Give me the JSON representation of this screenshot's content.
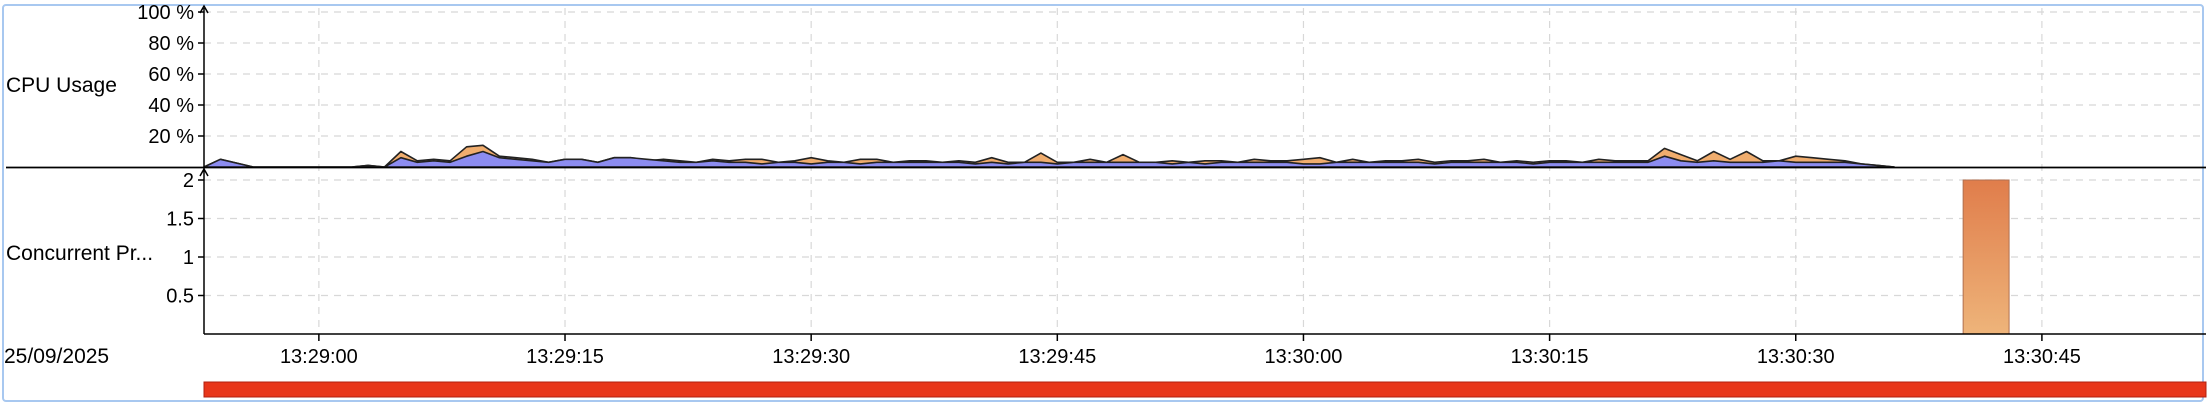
{
  "colors": {
    "panel_border": "#a8c8f0",
    "series_1": "#8c8cf0",
    "series_2": "#f0ad6e",
    "bar_top": "#e07d4b",
    "bar_bottom": "#eeb47a",
    "progress": "#e8361a",
    "grid": "#d8d8d8"
  },
  "chart_data": [
    {
      "type": "area",
      "stacked": true,
      "ylabel": "CPU Usage",
      "ylim": [
        0,
        100
      ],
      "y_ticks": [
        "20 %",
        "40 %",
        "60 %",
        "80 %",
        "100 %"
      ],
      "y_tick_values": [
        20,
        40,
        60,
        80,
        100
      ],
      "grid": true,
      "x_unit": "seconds after 13:28:53",
      "series": [
        {
          "values": [
            [
              0,
              0
            ],
            [
              1,
              5
            ],
            [
              3,
              0
            ],
            [
              9,
              0
            ],
            [
              10,
              1
            ],
            [
              11,
              0
            ],
            [
              12,
              6
            ],
            [
              13,
              3
            ],
            [
              14,
              4
            ],
            [
              15,
              3
            ],
            [
              16,
              7
            ],
            [
              17,
              10
            ],
            [
              18,
              6
            ],
            [
              19,
              5
            ],
            [
              20,
              4
            ],
            [
              21,
              3
            ],
            [
              22,
              5
            ],
            [
              23,
              5
            ],
            [
              24,
              3
            ],
            [
              25,
              6
            ],
            [
              26,
              6
            ],
            [
              27,
              5
            ],
            [
              28,
              4
            ],
            [
              29,
              3
            ],
            [
              30,
              3
            ],
            [
              31,
              4
            ],
            [
              32,
              3
            ],
            [
              33,
              3
            ],
            [
              34,
              2
            ],
            [
              35,
              3
            ],
            [
              36,
              3
            ],
            [
              37,
              2
            ],
            [
              38,
              3
            ],
            [
              39,
              3
            ],
            [
              40,
              2
            ],
            [
              41,
              3
            ],
            [
              42,
              3
            ],
            [
              43,
              3
            ],
            [
              44,
              3
            ],
            [
              45,
              3
            ],
            [
              46,
              3
            ],
            [
              47,
              2
            ],
            [
              48,
              3
            ],
            [
              49,
              2
            ],
            [
              50,
              3
            ],
            [
              51,
              3
            ],
            [
              52,
              2
            ],
            [
              53,
              3
            ],
            [
              54,
              3
            ],
            [
              55,
              3
            ],
            [
              56,
              3
            ],
            [
              57,
              3
            ],
            [
              58,
              3
            ],
            [
              59,
              2
            ],
            [
              60,
              3
            ],
            [
              61,
              2
            ],
            [
              62,
              3
            ],
            [
              63,
              3
            ],
            [
              64,
              3
            ],
            [
              65,
              3
            ],
            [
              66,
              3
            ],
            [
              67,
              2
            ],
            [
              68,
              2
            ],
            [
              69,
              3
            ],
            [
              70,
              3
            ],
            [
              71,
              3
            ],
            [
              72,
              3
            ],
            [
              73,
              3
            ],
            [
              74,
              3
            ],
            [
              75,
              2
            ],
            [
              76,
              3
            ],
            [
              77,
              3
            ],
            [
              78,
              3
            ],
            [
              79,
              3
            ],
            [
              80,
              3
            ],
            [
              81,
              2
            ],
            [
              82,
              3
            ],
            [
              83,
              3
            ],
            [
              84,
              3
            ],
            [
              85,
              3
            ],
            [
              86,
              3
            ],
            [
              87,
              3
            ],
            [
              88,
              3
            ],
            [
              89,
              7
            ],
            [
              90,
              4
            ],
            [
              91,
              3
            ],
            [
              92,
              4
            ],
            [
              93,
              3
            ],
            [
              94,
              3
            ],
            [
              95,
              3
            ],
            [
              96,
              4
            ],
            [
              97,
              3
            ],
            [
              98,
              3
            ],
            [
              99,
              3
            ],
            [
              100,
              3
            ],
            [
              101,
              2
            ],
            [
              102,
              1
            ],
            [
              103,
              0
            ]
          ]
        },
        {
          "values": [
            [
              0,
              0
            ],
            [
              1,
              5
            ],
            [
              3,
              0
            ],
            [
              9,
              0
            ],
            [
              10,
              1
            ],
            [
              11,
              0
            ],
            [
              12,
              10
            ],
            [
              13,
              4
            ],
            [
              14,
              5
            ],
            [
              15,
              4
            ],
            [
              16,
              13
            ],
            [
              17,
              14
            ],
            [
              18,
              7
            ],
            [
              19,
              6
            ],
            [
              20,
              5
            ],
            [
              21,
              3
            ],
            [
              22,
              5
            ],
            [
              23,
              5
            ],
            [
              24,
              3
            ],
            [
              25,
              6
            ],
            [
              26,
              6
            ],
            [
              27,
              4
            ],
            [
              28,
              5
            ],
            [
              29,
              4
            ],
            [
              30,
              3
            ],
            [
              31,
              5
            ],
            [
              32,
              4
            ],
            [
              33,
              5
            ],
            [
              34,
              5
            ],
            [
              35,
              3
            ],
            [
              36,
              4
            ],
            [
              37,
              6
            ],
            [
              38,
              4
            ],
            [
              39,
              3
            ],
            [
              40,
              5
            ],
            [
              41,
              5
            ],
            [
              42,
              3
            ],
            [
              43,
              4
            ],
            [
              44,
              4
            ],
            [
              45,
              3
            ],
            [
              46,
              4
            ],
            [
              47,
              3
            ],
            [
              48,
              6
            ],
            [
              49,
              3
            ],
            [
              50,
              3
            ],
            [
              51,
              9
            ],
            [
              52,
              3
            ],
            [
              53,
              3
            ],
            [
              54,
              5
            ],
            [
              55,
              3
            ],
            [
              56,
              8
            ],
            [
              57,
              3
            ],
            [
              58,
              3
            ],
            [
              59,
              4
            ],
            [
              60,
              3
            ],
            [
              61,
              4
            ],
            [
              62,
              4
            ],
            [
              63,
              3
            ],
            [
              64,
              5
            ],
            [
              65,
              4
            ],
            [
              66,
              4
            ],
            [
              67,
              5
            ],
            [
              68,
              6
            ],
            [
              69,
              3
            ],
            [
              70,
              5
            ],
            [
              71,
              3
            ],
            [
              72,
              4
            ],
            [
              73,
              4
            ],
            [
              74,
              5
            ],
            [
              75,
              3
            ],
            [
              76,
              4
            ],
            [
              77,
              4
            ],
            [
              78,
              5
            ],
            [
              79,
              3
            ],
            [
              80,
              4
            ],
            [
              81,
              3
            ],
            [
              82,
              4
            ],
            [
              83,
              4
            ],
            [
              84,
              3
            ],
            [
              85,
              5
            ],
            [
              86,
              4
            ],
            [
              87,
              4
            ],
            [
              88,
              4
            ],
            [
              89,
              12
            ],
            [
              90,
              8
            ],
            [
              91,
              4
            ],
            [
              92,
              10
            ],
            [
              93,
              5
            ],
            [
              94,
              10
            ],
            [
              95,
              4
            ],
            [
              96,
              4
            ],
            [
              97,
              7
            ],
            [
              98,
              6
            ],
            [
              99,
              5
            ],
            [
              100,
              4
            ],
            [
              101,
              2
            ],
            [
              102,
              1
            ],
            [
              103,
              0
            ]
          ]
        }
      ]
    },
    {
      "type": "bar",
      "ylabel": "Concurrent Pr...",
      "ylim": [
        0,
        2
      ],
      "y_ticks": [
        "0.5",
        "1",
        "1.5",
        "2"
      ],
      "y_tick_values": [
        0.5,
        1,
        1.5,
        2
      ],
      "grid": true,
      "bars": [
        {
          "x_start": 107.2,
          "x_end": 110,
          "value": 2
        }
      ]
    }
  ],
  "x_axis": {
    "date_label": "25/09/2025",
    "ticks": [
      {
        "label": "13:29:00",
        "value": 7
      },
      {
        "label": "13:29:15",
        "value": 22
      },
      {
        "label": "13:29:30",
        "value": 37
      },
      {
        "label": "13:29:45",
        "value": 52
      },
      {
        "label": "13:30:00",
        "value": 67
      },
      {
        "label": "13:30:15",
        "value": 82
      },
      {
        "label": "13:30:30",
        "value": 97
      },
      {
        "label": "13:30:45",
        "value": 112
      }
    ],
    "range": [
      0,
      122
    ]
  },
  "progress": {
    "value": 1.0
  }
}
